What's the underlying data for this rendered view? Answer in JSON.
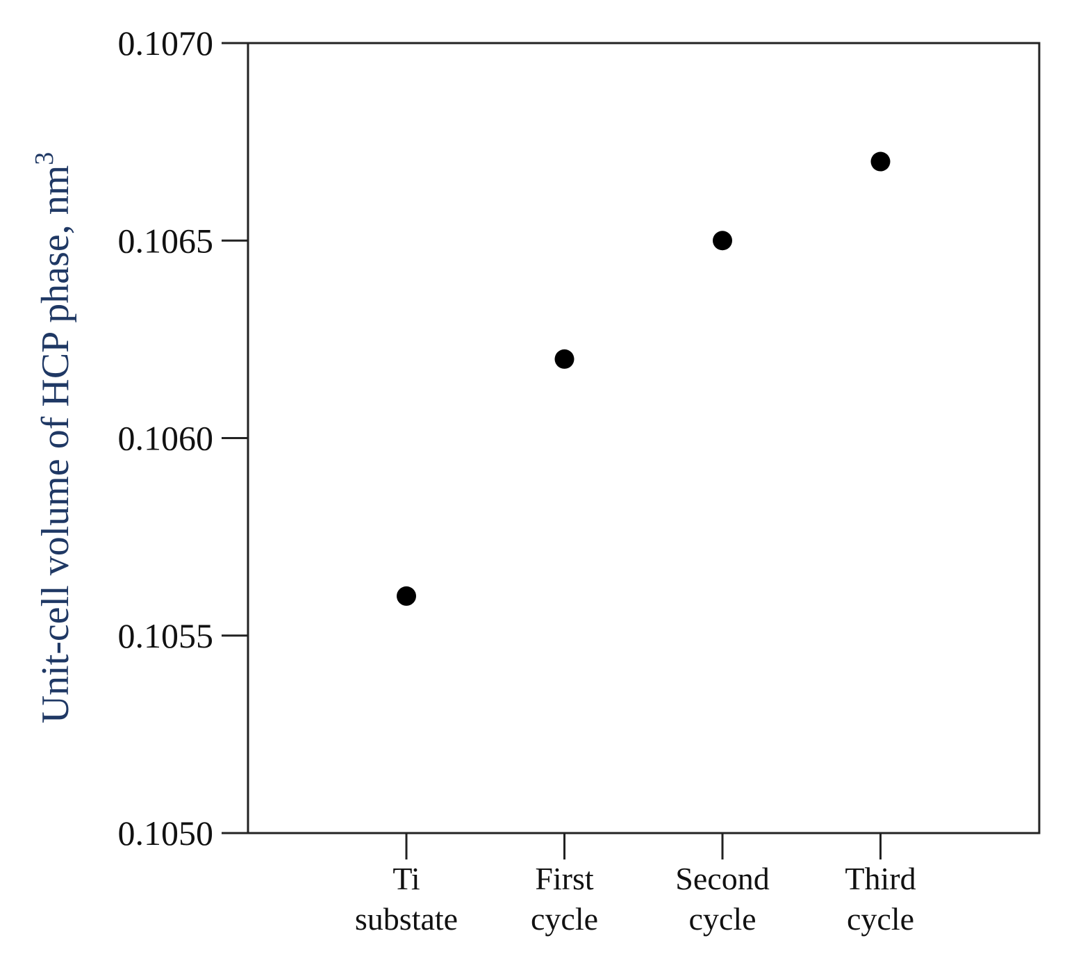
{
  "chart_data": {
    "type": "scatter",
    "categories": [
      [
        "Ti",
        "substate"
      ],
      [
        "First",
        "cycle"
      ],
      [
        "Second",
        "cycle"
      ],
      [
        "Third",
        "cycle"
      ]
    ],
    "values": [
      0.1056,
      0.1062,
      0.1065,
      0.1067
    ],
    "title": "",
    "xlabel": "",
    "ylabel": "Unit-cell volume of HCP phase, nm",
    "ylabel_superscript": "3",
    "ylim": [
      0.105,
      0.107
    ],
    "yticks": [
      "0.1050",
      "0.1055",
      "0.1060",
      "0.1065",
      "0.1070"
    ],
    "grid": false,
    "colors": {
      "marker": "#000000",
      "ylabel": "#1f3864",
      "axis": "#222222"
    }
  }
}
